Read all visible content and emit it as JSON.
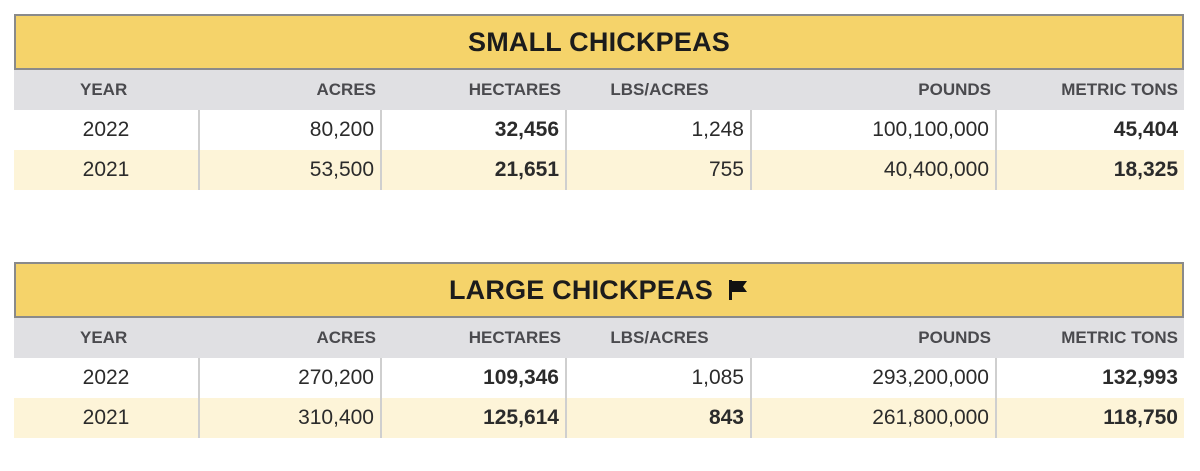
{
  "columns": [
    "YEAR",
    "ACRES",
    "HECTARES",
    "LBS/ACRES",
    "POUNDS",
    "METRIC TONS"
  ],
  "tables": [
    {
      "title": "SMALL CHICKPEAS",
      "rows": [
        {
          "year": "2022",
          "acres": "80,200",
          "hectares": "32,456",
          "lbs_acres": "1,248",
          "pounds": "100,100,000",
          "metric_tons": "45,404"
        },
        {
          "year": "2021",
          "acres": "53,500",
          "hectares": "21,651",
          "lbs_acres": "755",
          "pounds": "40,400,000",
          "metric_tons": "18,325"
        }
      ]
    },
    {
      "title": "LARGE CHICKPEAS",
      "icon": "flag-icon",
      "rows": [
        {
          "year": "2022",
          "acres": "270,200",
          "hectares": "109,346",
          "lbs_acres": "1,085",
          "pounds": "293,200,000",
          "metric_tons": "132,993"
        },
        {
          "year": "2021",
          "acres": "310,400",
          "hectares": "125,614",
          "lbs_acres": "843",
          "pounds": "261,800,000",
          "metric_tons": "118,750"
        }
      ]
    }
  ],
  "colors": {
    "title_bg": "#f5d36a",
    "header_bg": "#e0e0e3",
    "alt_row_bg": "#fdf4d8"
  }
}
